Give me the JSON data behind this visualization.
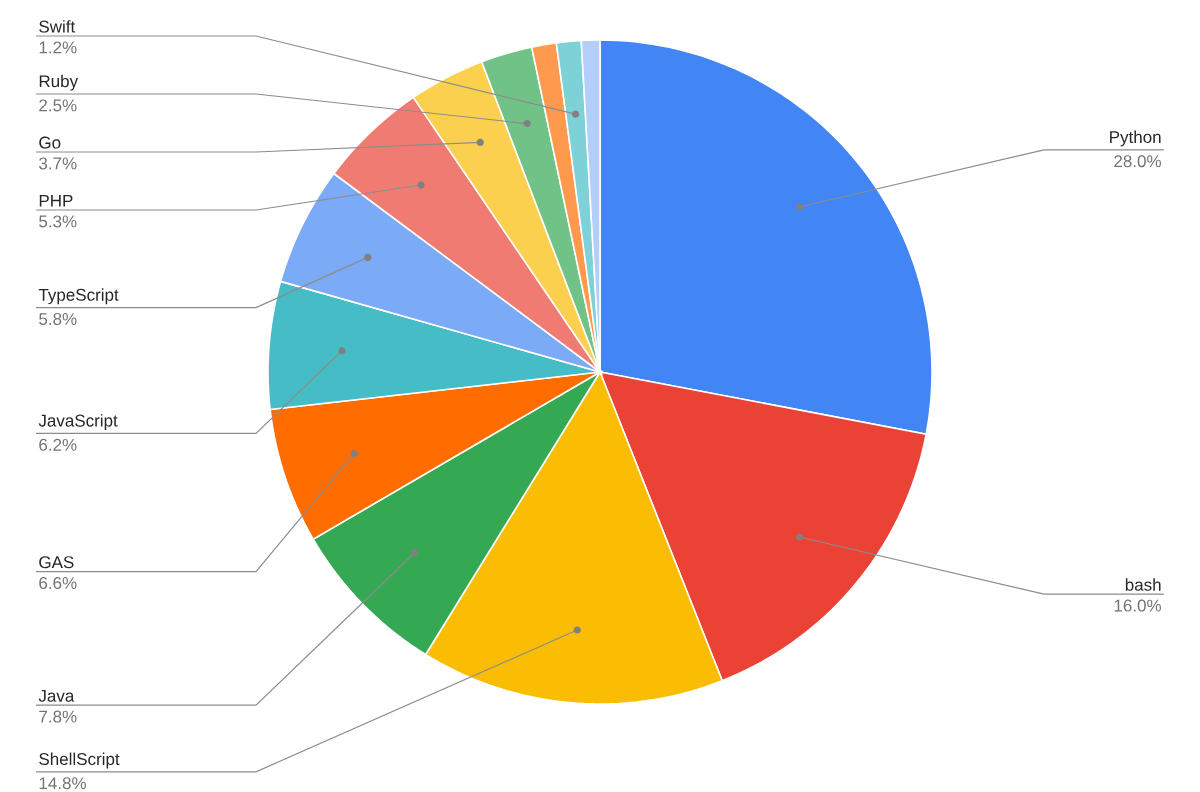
{
  "chart_data": {
    "type": "pie",
    "categories": [
      "Python",
      "bash",
      "ShellScript",
      "Java",
      "GAS",
      "JavaScript",
      "TypeScript",
      "PHP",
      "Go",
      "Ruby",
      null,
      "Swift",
      null
    ],
    "values": [
      28.0,
      16.0,
      14.8,
      7.8,
      6.6,
      6.2,
      5.8,
      5.3,
      3.7,
      2.5,
      1.2,
      1.2,
      0.9
    ],
    "value_labels": [
      "28.0%",
      "16.0%",
      "14.8%",
      "7.8%",
      "6.6%",
      "6.2%",
      "5.8%",
      "5.3%",
      "3.7%",
      "2.5%",
      null,
      "1.2%",
      null
    ],
    "colors": [
      "#4285f4",
      "#ea4335",
      "#fbbc04",
      "#34a853",
      "#ff6d01",
      "#46bdc6",
      "#7baaf7",
      "#f07b72",
      "#fcd04f",
      "#71c287",
      "#ff994d",
      "#7ed1d7",
      "#b3cefb"
    ]
  }
}
